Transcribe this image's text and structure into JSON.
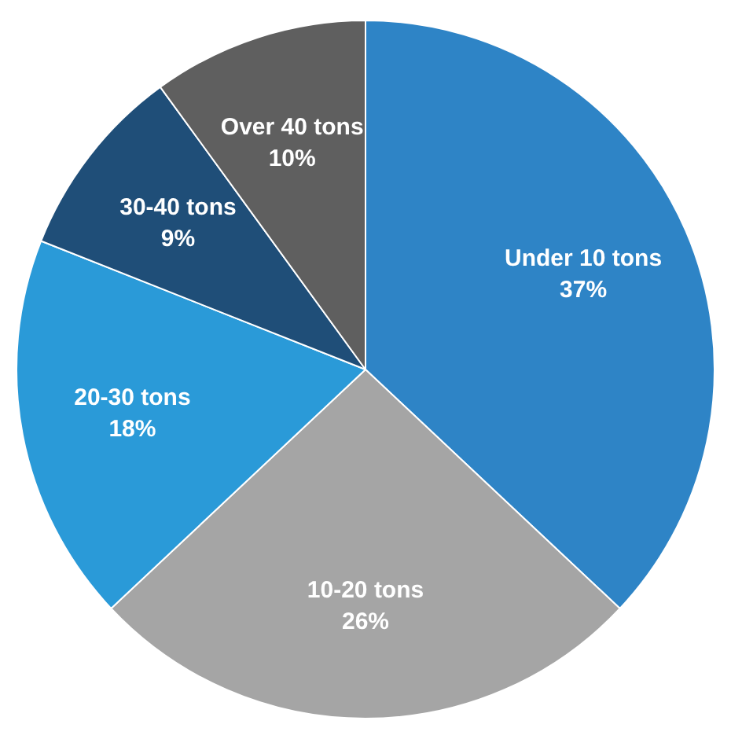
{
  "chart_data": {
    "type": "pie",
    "categories": [
      "Under 10 tons",
      "10-20 tons",
      "20-30 tons",
      "30-40 tons",
      "Over 40 tons"
    ],
    "values": [
      37,
      26,
      18,
      9,
      10
    ],
    "value_labels": [
      "37%",
      "26%",
      "18%",
      "9%",
      "10%"
    ],
    "colors": [
      "#2e84c6",
      "#a5a5a5",
      "#2a9ad8",
      "#1f4e78",
      "#5f5f5f"
    ],
    "legend": false
  }
}
